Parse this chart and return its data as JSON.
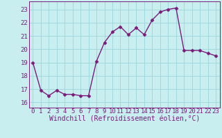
{
  "x": [
    0,
    1,
    2,
    3,
    4,
    5,
    6,
    7,
    8,
    9,
    10,
    11,
    12,
    13,
    14,
    15,
    16,
    17,
    18,
    19,
    20,
    21,
    22,
    23
  ],
  "y": [
    19.0,
    16.9,
    16.5,
    16.9,
    16.6,
    16.6,
    16.5,
    16.5,
    19.1,
    20.5,
    21.3,
    21.7,
    21.1,
    21.6,
    21.1,
    22.2,
    22.8,
    23.0,
    23.1,
    19.9,
    19.9,
    19.9,
    19.7,
    19.5
  ],
  "line_color": "#7b1a7b",
  "marker": "D",
  "markersize": 2.5,
  "bg_color": "#c8eef0",
  "grid_color": "#a0d8db",
  "ylabel_ticks": [
    16,
    17,
    18,
    19,
    20,
    21,
    22,
    23
  ],
  "xlabel_ticks": [
    0,
    1,
    2,
    3,
    4,
    5,
    6,
    7,
    8,
    9,
    10,
    11,
    12,
    13,
    14,
    15,
    16,
    17,
    18,
    19,
    20,
    21,
    22,
    23
  ],
  "xlabel": "Windchill (Refroidissement éolien,°C)",
  "ylim": [
    15.6,
    23.6
  ],
  "xlim": [
    -0.5,
    23.5
  ],
  "tick_fontsize": 6.5,
  "xlabel_fontsize": 7.0,
  "line_width": 1.0
}
